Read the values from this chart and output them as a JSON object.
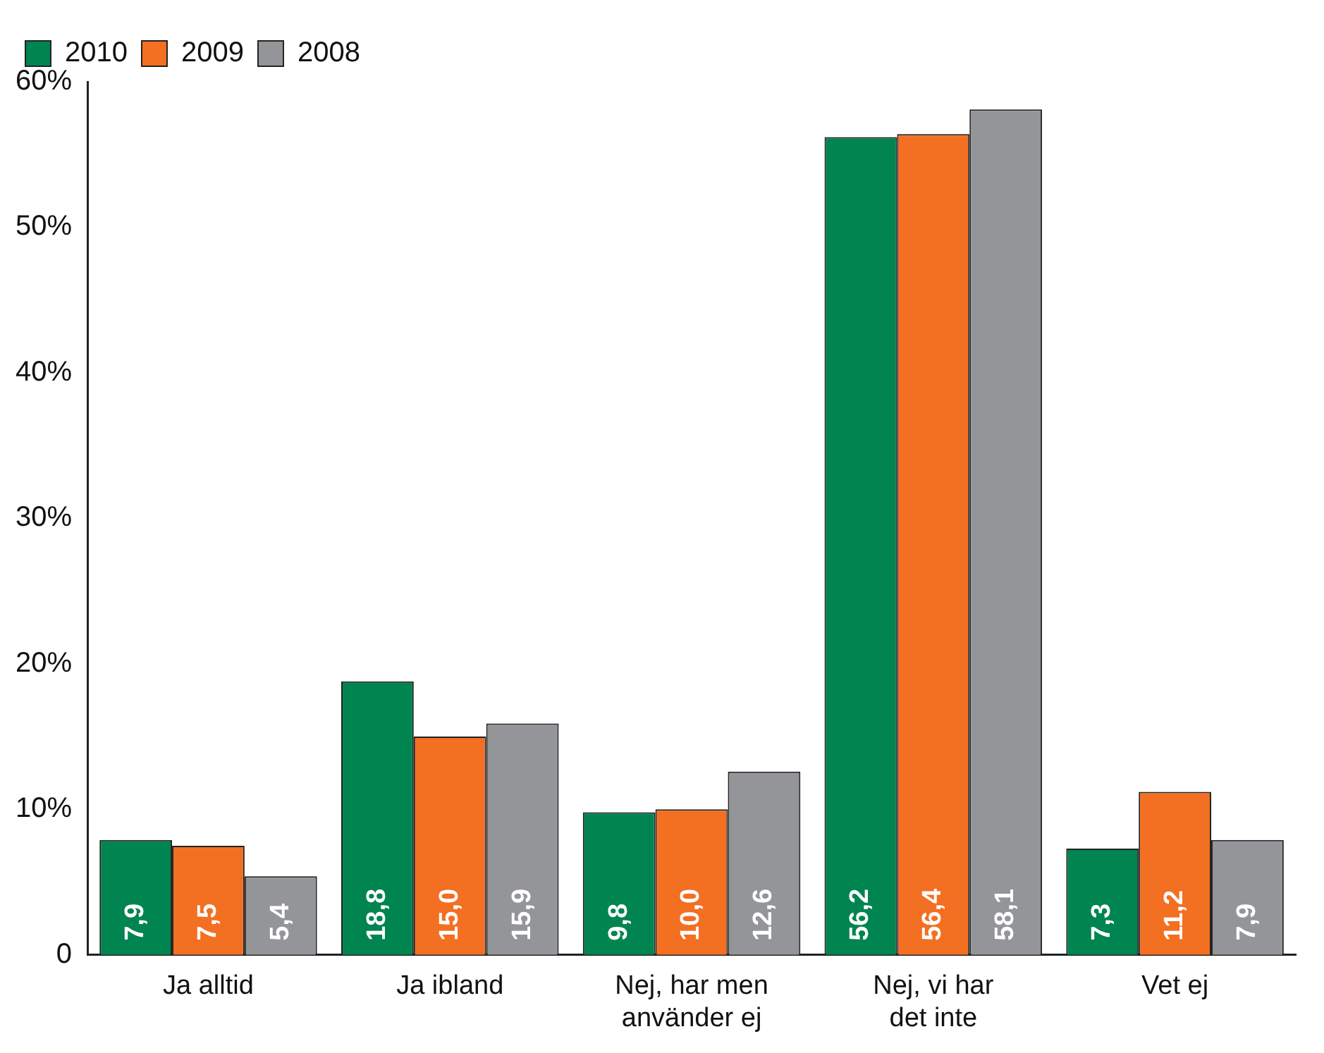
{
  "chart_data": {
    "type": "bar",
    "categories": [
      "Ja alltid",
      "Ja ibland",
      "Nej, har men använder ej",
      "Nej, vi har det inte",
      "Vet ej"
    ],
    "series": [
      {
        "name": "2010",
        "color": "#008450",
        "values": [
          7.9,
          18.8,
          9.8,
          56.2,
          7.3
        ],
        "value_labels": [
          "7,9",
          "18,8",
          "9,8",
          "56,2",
          "7,3"
        ]
      },
      {
        "name": "2009",
        "color": "#f36f21",
        "values": [
          7.5,
          15.0,
          10.0,
          56.4,
          11.2
        ],
        "value_labels": [
          "7,5",
          "15,0",
          "10,0",
          "56,4",
          "11,2"
        ]
      },
      {
        "name": "2008",
        "color": "#939598",
        "values": [
          5.4,
          15.9,
          12.6,
          58.1,
          7.9
        ],
        "value_labels": [
          "5,4",
          "15,9",
          "12,6",
          "58,1",
          "7,9"
        ]
      }
    ],
    "ylim": [
      0,
      60
    ],
    "yticks": [
      0,
      {
        "value": 10,
        "label": "10%"
      },
      {
        "value": 20,
        "label": "20%"
      },
      {
        "value": 30,
        "label": "30%"
      },
      {
        "value": 40,
        "label": "40%"
      },
      {
        "value": 50,
        "label": "50%"
      },
      {
        "value": 60,
        "label": "60%"
      }
    ],
    "grid": false,
    "legend": "top left"
  }
}
